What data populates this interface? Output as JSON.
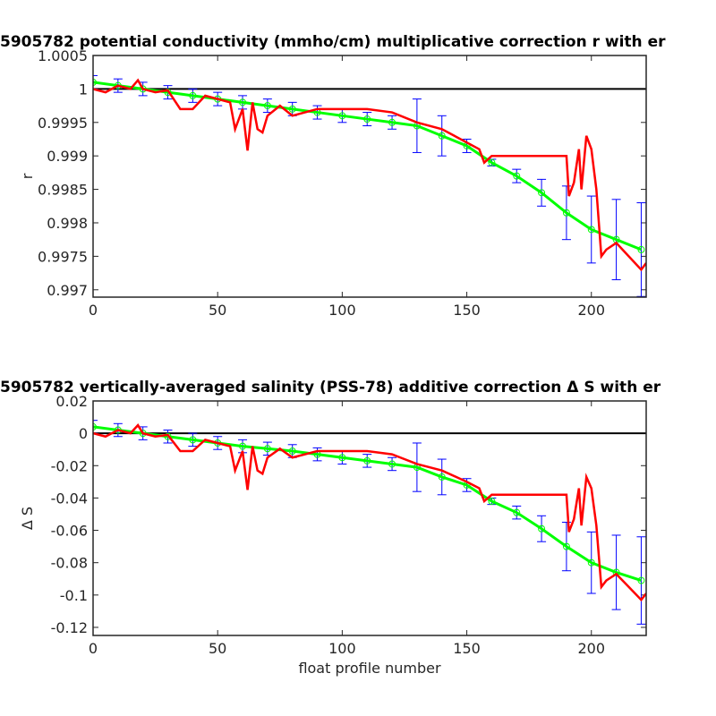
{
  "chart_data": [
    {
      "type": "line",
      "title": "5905782 potential conductivity (mmho/cm) multiplicative correction r with er",
      "ylabel": "r",
      "xlim": [
        0,
        222
      ],
      "xticks": [
        0,
        50,
        100,
        150,
        200
      ],
      "ylim": [
        0.99689,
        1.0005
      ],
      "yticks": [
        1.0005,
        1,
        0.9995,
        0.999,
        0.9985,
        0.998,
        0.9975,
        0.997
      ],
      "hline": 1,
      "series": [
        {
          "color": "#00ff00",
          "error_color": "#0000ff",
          "x": [
            0,
            10,
            20,
            30,
            40,
            50,
            60,
            70,
            80,
            90,
            100,
            110,
            120,
            130,
            140,
            150,
            160,
            170,
            180,
            190,
            200,
            210,
            220
          ],
          "values": [
            1.0001,
            1.00005,
            1.0,
            0.99995,
            0.9999,
            0.99985,
            0.9998,
            0.99975,
            0.9997,
            0.99965,
            0.9996,
            0.99955,
            0.9995,
            0.99945,
            0.9993,
            0.99915,
            0.9989,
            0.9987,
            0.99845,
            0.99815,
            0.9979,
            0.99775,
            0.9976
          ],
          "errors": [
            0.0001,
            0.0001,
            0.0001,
            0.0001,
            0.0001,
            0.0001,
            0.0001,
            0.0001,
            0.0001,
            0.0001,
            0.0001,
            0.0001,
            0.0001,
            0.0004,
            0.0003,
            0.0001,
            5e-05,
            0.0001,
            0.0002,
            0.0004,
            0.0005,
            0.0006,
            0.0007
          ]
        },
        {
          "color": "#ff0000",
          "x": [
            0,
            5,
            10,
            15,
            18,
            20,
            25,
            30,
            35,
            40,
            45,
            50,
            55,
            57,
            60,
            62,
            64,
            66,
            68,
            70,
            75,
            80,
            90,
            100,
            110,
            120,
            130,
            140,
            150,
            155,
            157,
            160,
            170,
            180,
            190,
            191,
            193,
            195,
            196,
            198,
            200,
            202,
            204,
            206,
            210,
            215,
            220,
            222
          ],
          "values": [
            1.0,
            0.99995,
            1.00005,
            1.0,
            1.00013,
            1.0,
            0.99995,
            0.99998,
            0.9997,
            0.9997,
            0.9999,
            0.99985,
            0.9998,
            0.9994,
            0.9997,
            0.99908,
            0.9998,
            0.9994,
            0.99935,
            0.9996,
            0.99975,
            0.9996,
            0.9997,
            0.9997,
            0.9997,
            0.99965,
            0.9995,
            0.9994,
            0.9992,
            0.9991,
            0.9989,
            0.999,
            0.999,
            0.999,
            0.999,
            0.9984,
            0.9986,
            0.9991,
            0.9985,
            0.9993,
            0.9991,
            0.9985,
            0.9975,
            0.9976,
            0.9977,
            0.9975,
            0.9973,
            0.9974
          ]
        }
      ]
    },
    {
      "type": "line",
      "title": "5905782 vertically-averaged salinity (PSS-78) additive correction Δ S with er",
      "ylabel": "Δ S",
      "xlabel": "float profile number",
      "xlim": [
        0,
        222
      ],
      "xticks": [
        0,
        50,
        100,
        150,
        200
      ],
      "ylim": [
        -0.125,
        0.02
      ],
      "yticks": [
        0.02,
        0,
        -0.02,
        -0.04,
        -0.06,
        -0.08,
        -0.1,
        -0.12
      ],
      "hline": 0,
      "series": [
        {
          "color": "#00ff00",
          "error_color": "#0000ff",
          "x": [
            0,
            10,
            20,
            30,
            40,
            50,
            60,
            70,
            80,
            90,
            100,
            110,
            120,
            130,
            140,
            150,
            160,
            170,
            180,
            190,
            200,
            210,
            220
          ],
          "values": [
            0.004,
            0.002,
            0,
            -0.002,
            -0.004,
            -0.006,
            -0.008,
            -0.0095,
            -0.011,
            -0.013,
            -0.015,
            -0.017,
            -0.019,
            -0.021,
            -0.027,
            -0.032,
            -0.042,
            -0.049,
            -0.059,
            -0.07,
            -0.08,
            -0.086,
            -0.091
          ],
          "errors": [
            0.004,
            0.004,
            0.004,
            0.004,
            0.004,
            0.004,
            0.004,
            0.004,
            0.004,
            0.004,
            0.004,
            0.004,
            0.004,
            0.015,
            0.011,
            0.004,
            0.002,
            0.004,
            0.008,
            0.015,
            0.019,
            0.023,
            0.027
          ]
        },
        {
          "color": "#ff0000",
          "x": [
            0,
            5,
            10,
            15,
            18,
            20,
            25,
            30,
            35,
            40,
            45,
            50,
            55,
            57,
            60,
            62,
            64,
            66,
            68,
            70,
            75,
            80,
            90,
            100,
            110,
            120,
            130,
            140,
            150,
            155,
            157,
            160,
            170,
            180,
            190,
            191,
            193,
            195,
            196,
            198,
            200,
            202,
            204,
            206,
            210,
            215,
            220,
            222
          ],
          "values": [
            0,
            -0.002,
            0.002,
            0,
            0.005,
            0,
            -0.002,
            -0.001,
            -0.011,
            -0.011,
            -0.004,
            -0.006,
            -0.008,
            -0.023,
            -0.011,
            -0.035,
            -0.008,
            -0.023,
            -0.025,
            -0.015,
            -0.0095,
            -0.015,
            -0.011,
            -0.011,
            -0.011,
            -0.013,
            -0.019,
            -0.023,
            -0.03,
            -0.034,
            -0.042,
            -0.038,
            -0.038,
            -0.038,
            -0.038,
            -0.061,
            -0.053,
            -0.034,
            -0.057,
            -0.027,
            -0.034,
            -0.057,
            -0.095,
            -0.091,
            -0.087,
            -0.095,
            -0.103,
            -0.099
          ]
        }
      ]
    }
  ]
}
